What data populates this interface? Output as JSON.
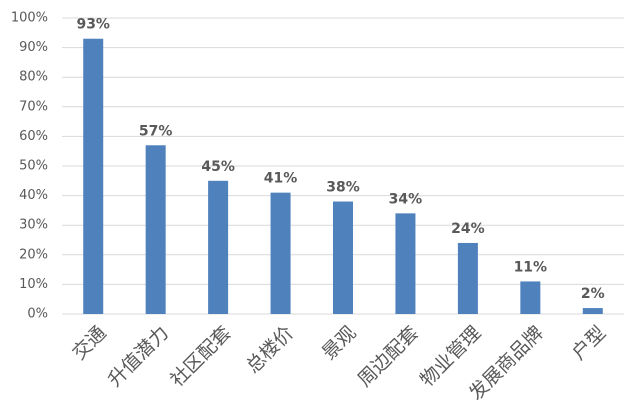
{
  "chart_data": {
    "type": "bar",
    "categories": [
      "交通",
      "升值潜力",
      "社区配套",
      "总楼价",
      "景观",
      "周边配套",
      "物业管理",
      "发展商品牌",
      "户型"
    ],
    "values": [
      93,
      57,
      45,
      41,
      38,
      34,
      24,
      11,
      2
    ],
    "value_labels": [
      "93%",
      "57%",
      "45%",
      "41%",
      "38%",
      "34%",
      "24%",
      "11%",
      "2%"
    ],
    "color": "#4f81bd",
    "ylim": [
      0,
      100
    ],
    "yticks": [
      {
        "value": 0,
        "label": "0%"
      },
      {
        "value": 10,
        "label": "10%"
      },
      {
        "value": 20,
        "label": "20%"
      },
      {
        "value": 30,
        "label": "30%"
      },
      {
        "value": 40,
        "label": "40%"
      },
      {
        "value": 50,
        "label": "50%"
      },
      {
        "value": 60,
        "label": "60%"
      },
      {
        "value": 70,
        "label": "70%"
      },
      {
        "value": 80,
        "label": "80%"
      },
      {
        "value": 90,
        "label": "90%"
      },
      {
        "value": 100,
        "label": "100%"
      }
    ],
    "grid": true
  }
}
